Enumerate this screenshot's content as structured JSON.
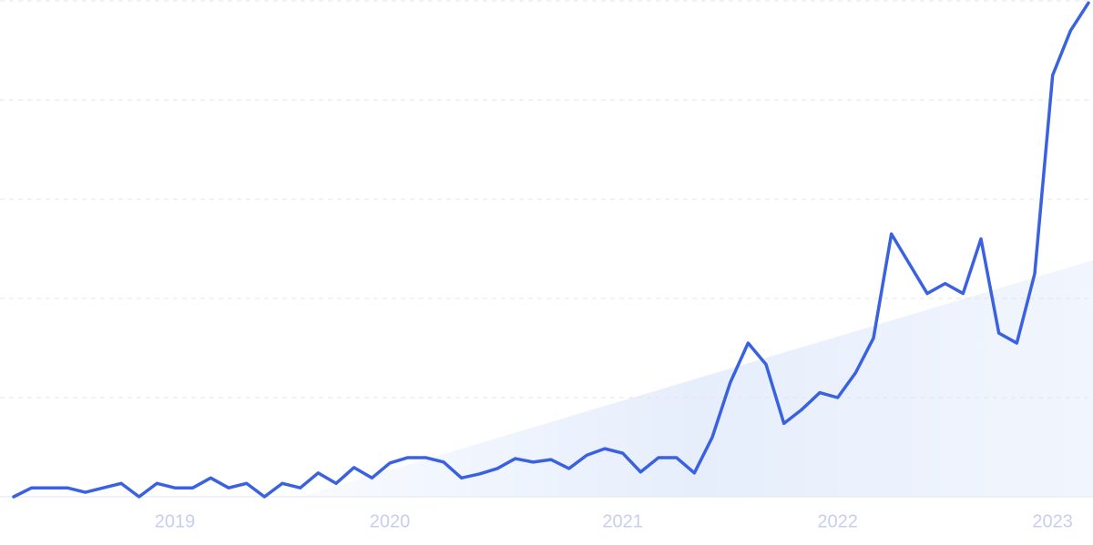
{
  "chart_data": {
    "type": "line",
    "categories": [
      null,
      null,
      null,
      null,
      null,
      null,
      null,
      null,
      null,
      "2019",
      null,
      null,
      null,
      null,
      null,
      null,
      null,
      null,
      null,
      null,
      null,
      "2020",
      null,
      null,
      null,
      null,
      null,
      null,
      null,
      null,
      null,
      null,
      null,
      null,
      "2021",
      null,
      null,
      null,
      null,
      null,
      null,
      null,
      null,
      null,
      null,
      null,
      "2022",
      null,
      null,
      null,
      null,
      null,
      null,
      null,
      null,
      null,
      null,
      null,
      "2023",
      null,
      null
    ],
    "values": [
      0,
      1.8,
      1.8,
      1.8,
      0.9,
      1.8,
      2.7,
      0,
      2.7,
      1.8,
      1.8,
      3.8,
      1.8,
      2.7,
      0,
      2.7,
      1.8,
      4.8,
      2.7,
      5.9,
      3.8,
      6.8,
      7.9,
      7.9,
      7,
      3.8,
      4.6,
      5.7,
      7.7,
      7,
      7.5,
      5.7,
      8.4,
      9.7,
      8.8,
      5,
      7.9,
      7.9,
      4.8,
      12,
      23,
      31,
      26.7,
      14.8,
      17.6,
      21,
      20,
      25,
      32,
      53,
      47,
      41,
      43,
      41,
      52,
      33,
      31,
      45,
      85,
      94,
      99.6
    ],
    "color": "#3a62e0",
    "ylim": [
      0,
      100
    ],
    "yticks": [
      0,
      20,
      40,
      60,
      80,
      100
    ],
    "grid": true
  }
}
